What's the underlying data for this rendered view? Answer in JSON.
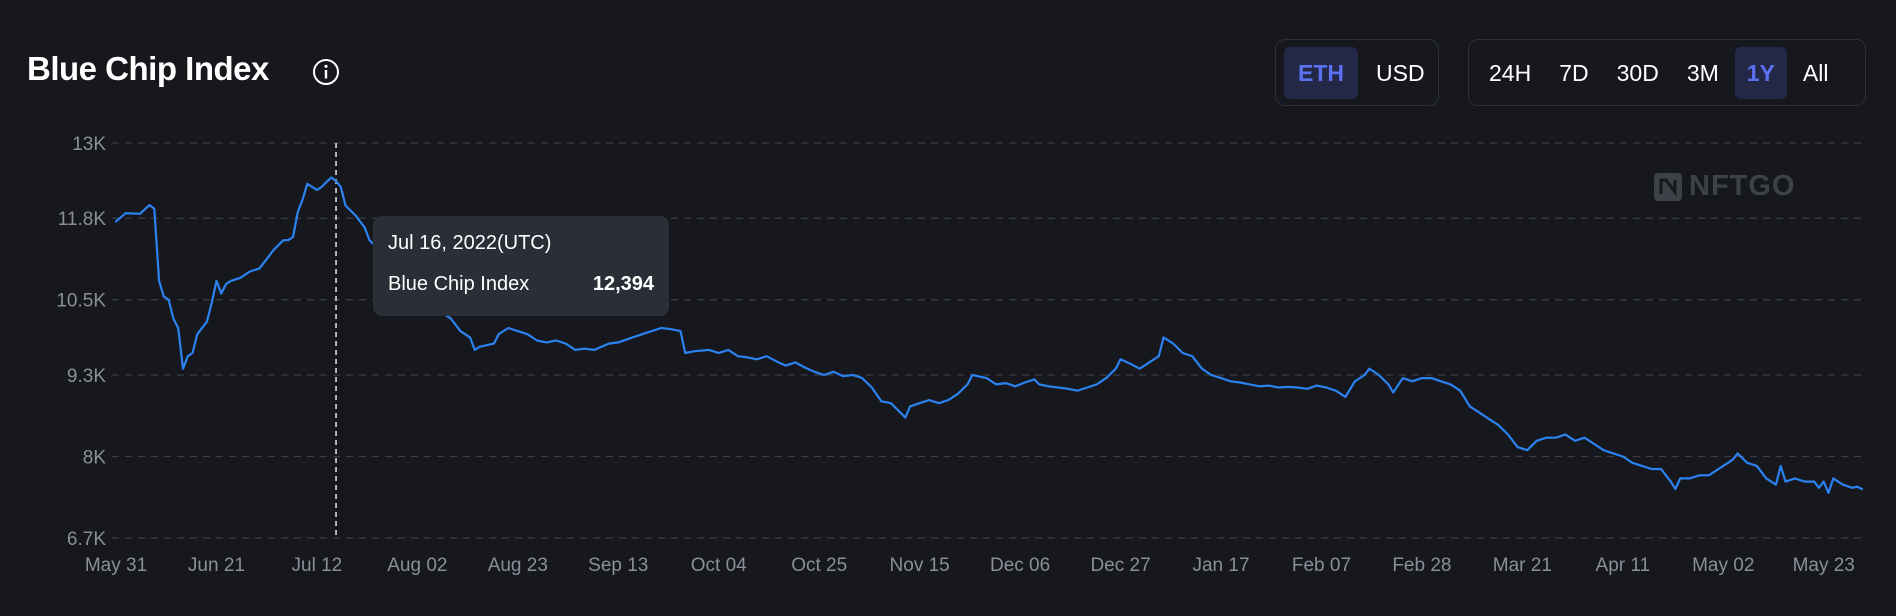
{
  "header": {
    "title": "Blue Chip Index",
    "info_icon": "info-icon",
    "currency_toggle": [
      {
        "label": "ETH",
        "active": true
      },
      {
        "label": "USD",
        "active": false
      }
    ],
    "range_toggle": [
      {
        "label": "24H",
        "active": false
      },
      {
        "label": "7D",
        "active": false
      },
      {
        "label": "30D",
        "active": false
      },
      {
        "label": "3M",
        "active": false
      },
      {
        "label": "1Y",
        "active": true
      },
      {
        "label": "All",
        "active": false
      }
    ]
  },
  "watermark": {
    "text": "NFTGO",
    "icon": "nftgo-logo-icon"
  },
  "tooltip": {
    "date": "Jul 16, 2022(UTC)",
    "series_name": "Blue Chip Index",
    "value": "12,394"
  },
  "colors": {
    "background": "#16181d",
    "line": "#2b82f0",
    "grid": "#3a3e46",
    "axis_text": "#8a8f98",
    "active_toggle_bg": "#232846",
    "active_toggle_text": "#5a72f2",
    "tooltip_bg": "#2a2f37"
  },
  "chart_data": {
    "type": "line",
    "title": "Blue Chip Index",
    "xlabel": "",
    "ylabel": "",
    "grid": true,
    "ylim": [
      6700,
      13000
    ],
    "y_ticks": [
      "6.7K",
      "8K",
      "9.3K",
      "10.5K",
      "11.8K",
      "13K"
    ],
    "y_tick_values": [
      6700,
      8000,
      9300,
      10500,
      11800,
      13000
    ],
    "x_ticks": [
      "May 31",
      "Jun 21",
      "Jul 12",
      "Aug 02",
      "Aug 23",
      "Sep 13",
      "Oct 04",
      "Oct 25",
      "Nov 15",
      "Dec 06",
      "Dec 27",
      "Jan 17",
      "Feb 07",
      "Feb 28",
      "Mar 21",
      "Apr 11",
      "May 02",
      "May 23"
    ],
    "x_tick_days": [
      0,
      21,
      42,
      63,
      84,
      105,
      126,
      147,
      168,
      189,
      210,
      231,
      252,
      273,
      294,
      315,
      336,
      357
    ],
    "crosshair_day": 46,
    "series": [
      {
        "name": "Blue Chip Index",
        "points": [
          [
            0,
            11750
          ],
          [
            2,
            11880
          ],
          [
            5,
            11870
          ],
          [
            7,
            12010
          ],
          [
            8,
            11950
          ],
          [
            9,
            10800
          ],
          [
            10,
            10550
          ],
          [
            11,
            10500
          ],
          [
            12,
            10200
          ],
          [
            13,
            10050
          ],
          [
            14,
            9400
          ],
          [
            15,
            9600
          ],
          [
            16,
            9650
          ],
          [
            17,
            9950
          ],
          [
            19,
            10150
          ],
          [
            20,
            10450
          ],
          [
            21,
            10800
          ],
          [
            22,
            10600
          ],
          [
            23,
            10750
          ],
          [
            24,
            10800
          ],
          [
            26,
            10850
          ],
          [
            28,
            10950
          ],
          [
            30,
            11000
          ],
          [
            32,
            11200
          ],
          [
            33,
            11300
          ],
          [
            35,
            11450
          ],
          [
            36,
            11450
          ],
          [
            37,
            11500
          ],
          [
            38,
            11900
          ],
          [
            39,
            12100
          ],
          [
            40,
            12350
          ],
          [
            42,
            12250
          ],
          [
            43,
            12300
          ],
          [
            44,
            12380
          ],
          [
            45,
            12450
          ],
          [
            46,
            12394
          ],
          [
            47,
            12300
          ],
          [
            48,
            12000
          ],
          [
            50,
            11850
          ],
          [
            52,
            11650
          ],
          [
            53,
            11450
          ],
          [
            55,
            11300
          ],
          [
            58,
            11000
          ],
          [
            62,
            10650
          ],
          [
            65,
            10500
          ],
          [
            68,
            10300
          ],
          [
            70,
            10200
          ],
          [
            72,
            10000
          ],
          [
            74,
            9900
          ],
          [
            75,
            9700
          ],
          [
            76,
            9750
          ],
          [
            79,
            9800
          ],
          [
            80,
            9950
          ],
          [
            82,
            10050
          ],
          [
            84,
            10000
          ],
          [
            86,
            9950
          ],
          [
            88,
            9850
          ],
          [
            90,
            9820
          ],
          [
            92,
            9850
          ],
          [
            94,
            9800
          ],
          [
            96,
            9700
          ],
          [
            98,
            9720
          ],
          [
            100,
            9700
          ],
          [
            103,
            9800
          ],
          [
            105,
            9820
          ],
          [
            108,
            9900
          ],
          [
            110,
            9950
          ],
          [
            112,
            10000
          ],
          [
            114,
            10050
          ],
          [
            116,
            10030
          ],
          [
            118,
            10000
          ],
          [
            119,
            9650
          ],
          [
            121,
            9680
          ],
          [
            124,
            9700
          ],
          [
            126,
            9650
          ],
          [
            128,
            9700
          ],
          [
            130,
            9600
          ],
          [
            132,
            9580
          ],
          [
            134,
            9550
          ],
          [
            136,
            9600
          ],
          [
            138,
            9520
          ],
          [
            140,
            9450
          ],
          [
            142,
            9500
          ],
          [
            144,
            9420
          ],
          [
            146,
            9350
          ],
          [
            148,
            9300
          ],
          [
            150,
            9350
          ],
          [
            152,
            9280
          ],
          [
            154,
            9300
          ],
          [
            156,
            9250
          ],
          [
            158,
            9100
          ],
          [
            160,
            8880
          ],
          [
            162,
            8850
          ],
          [
            164,
            8700
          ],
          [
            165,
            8620
          ],
          [
            166,
            8800
          ],
          [
            168,
            8850
          ],
          [
            170,
            8900
          ],
          [
            172,
            8850
          ],
          [
            174,
            8900
          ],
          [
            176,
            9000
          ],
          [
            178,
            9150
          ],
          [
            179,
            9300
          ],
          [
            182,
            9250
          ],
          [
            184,
            9150
          ],
          [
            186,
            9170
          ],
          [
            188,
            9120
          ],
          [
            190,
            9180
          ],
          [
            192,
            9230
          ],
          [
            193,
            9150
          ],
          [
            195,
            9120
          ],
          [
            197,
            9100
          ],
          [
            199,
            9080
          ],
          [
            201,
            9050
          ],
          [
            203,
            9100
          ],
          [
            205,
            9150
          ],
          [
            207,
            9250
          ],
          [
            209,
            9400
          ],
          [
            210,
            9550
          ],
          [
            212,
            9480
          ],
          [
            214,
            9400
          ],
          [
            216,
            9500
          ],
          [
            218,
            9600
          ],
          [
            219,
            9900
          ],
          [
            221,
            9800
          ],
          [
            223,
            9650
          ],
          [
            225,
            9600
          ],
          [
            227,
            9400
          ],
          [
            229,
            9300
          ],
          [
            231,
            9250
          ],
          [
            233,
            9200
          ],
          [
            235,
            9180
          ],
          [
            237,
            9150
          ],
          [
            239,
            9120
          ],
          [
            241,
            9130
          ],
          [
            243,
            9100
          ],
          [
            245,
            9110
          ],
          [
            247,
            9100
          ],
          [
            249,
            9080
          ],
          [
            251,
            9130
          ],
          [
            253,
            9100
          ],
          [
            255,
            9050
          ],
          [
            257,
            8950
          ],
          [
            259,
            9200
          ],
          [
            261,
            9300
          ],
          [
            262,
            9400
          ],
          [
            264,
            9300
          ],
          [
            266,
            9150
          ],
          [
            267,
            9020
          ],
          [
            269,
            9250
          ],
          [
            271,
            9200
          ],
          [
            273,
            9250
          ],
          [
            275,
            9250
          ],
          [
            277,
            9200
          ],
          [
            279,
            9150
          ],
          [
            281,
            9050
          ],
          [
            283,
            8800
          ],
          [
            285,
            8700
          ],
          [
            287,
            8600
          ],
          [
            289,
            8500
          ],
          [
            291,
            8350
          ],
          [
            293,
            8150
          ],
          [
            295,
            8100
          ],
          [
            297,
            8250
          ],
          [
            299,
            8300
          ],
          [
            301,
            8300
          ],
          [
            303,
            8350
          ],
          [
            305,
            8250
          ],
          [
            307,
            8300
          ],
          [
            309,
            8200
          ],
          [
            311,
            8100
          ],
          [
            313,
            8050
          ],
          [
            315,
            8000
          ],
          [
            317,
            7900
          ],
          [
            319,
            7850
          ],
          [
            321,
            7800
          ],
          [
            323,
            7800
          ],
          [
            325,
            7600
          ],
          [
            326,
            7480
          ],
          [
            327,
            7650
          ],
          [
            329,
            7650
          ],
          [
            331,
            7700
          ],
          [
            333,
            7700
          ],
          [
            335,
            7800
          ],
          [
            336,
            7850
          ],
          [
            338,
            7950
          ],
          [
            339,
            8050
          ],
          [
            341,
            7900
          ],
          [
            343,
            7850
          ],
          [
            345,
            7650
          ],
          [
            347,
            7550
          ],
          [
            348,
            7850
          ],
          [
            349,
            7600
          ],
          [
            351,
            7650
          ],
          [
            353,
            7600
          ],
          [
            355,
            7600
          ],
          [
            356,
            7500
          ],
          [
            357,
            7600
          ],
          [
            358,
            7420
          ],
          [
            359,
            7650
          ],
          [
            361,
            7550
          ],
          [
            363,
            7500
          ],
          [
            364,
            7520
          ],
          [
            365,
            7480
          ]
        ]
      }
    ]
  }
}
